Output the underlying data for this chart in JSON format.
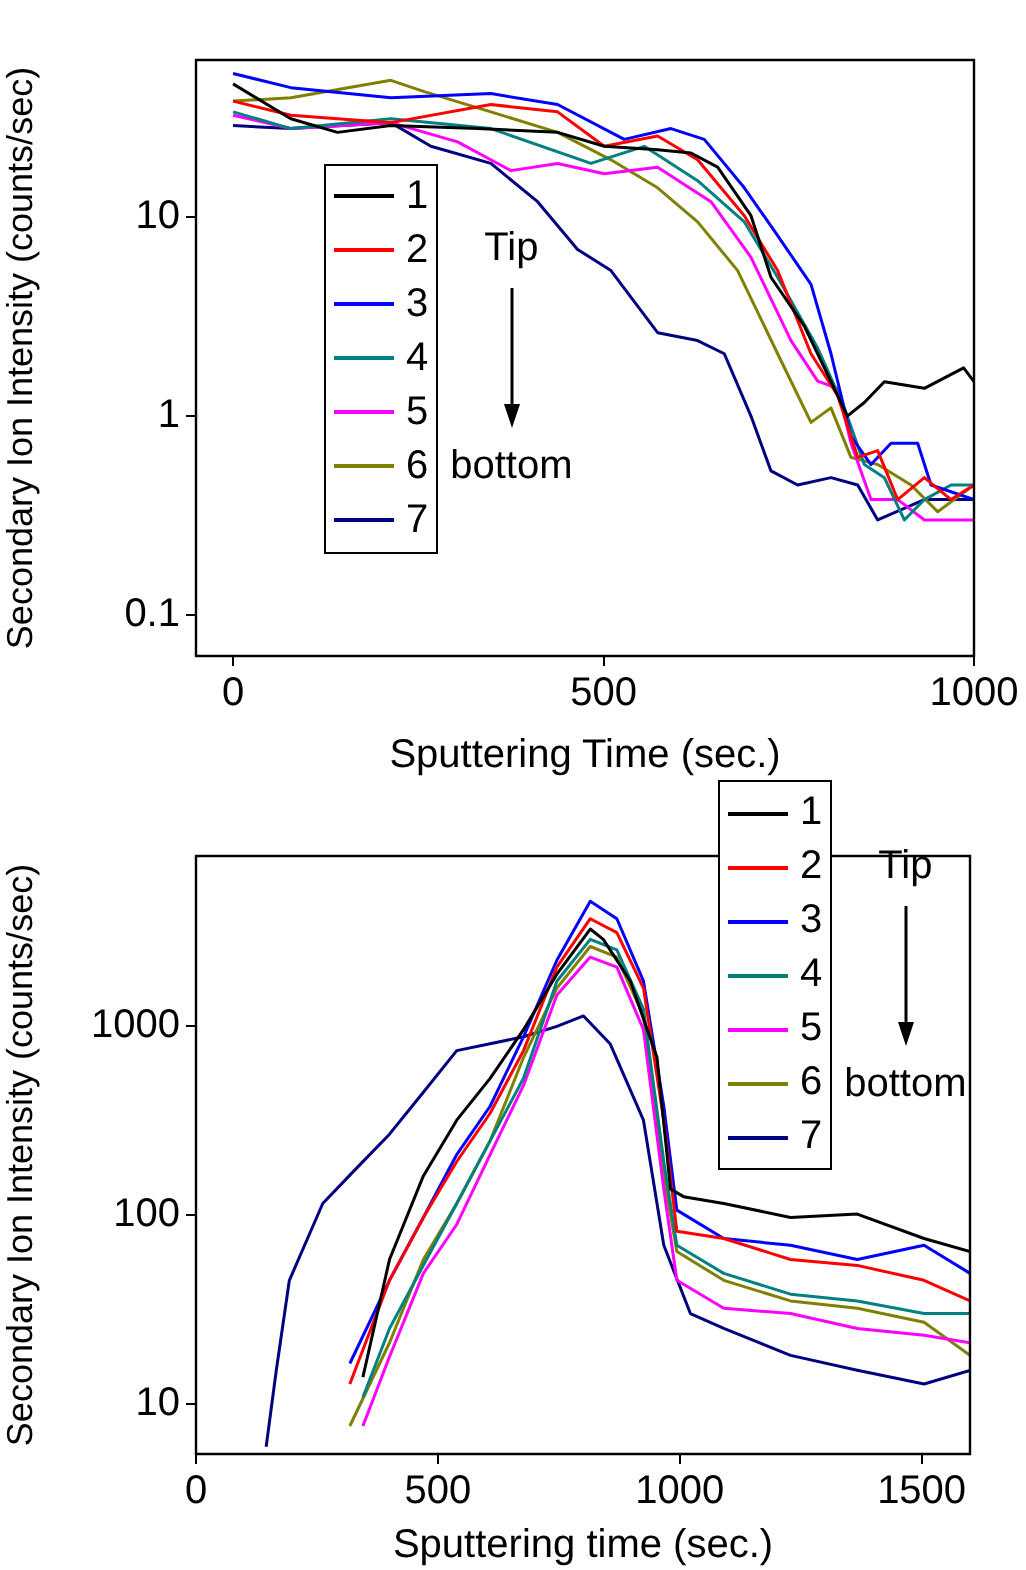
{
  "chart_data": [
    {
      "type": "line",
      "xlabel": "Sputtering Time (sec.)",
      "ylabel": "Secondary Ion Intensity (counts/sec)",
      "log": "y",
      "xlim": [
        -50,
        1000
      ],
      "xticks": [
        0,
        500,
        1000
      ],
      "ylim": [
        0.062,
        62
      ],
      "yticks": [
        0.1,
        1,
        10
      ],
      "grid": false,
      "legend": "left",
      "marker": "none",
      "line_style": "solid",
      "annotations": [
        "Tip",
        "bottom"
      ],
      "series": [
        {
          "name": "1",
          "color": "#000000",
          "x": [
            0,
            78,
            141,
            213,
            330,
            438,
            501,
            573,
            618,
            654,
            699,
            726,
            771,
            807,
            829,
            852,
            879,
            933,
            986,
            1000
          ],
          "values": [
            47,
            31.4,
            26.8,
            29,
            28,
            26.8,
            22.8,
            21.9,
            21.1,
            17.9,
            10.2,
            5,
            2.84,
            1.49,
            1.0,
            1.17,
            1.49,
            1.38,
            1.75,
            1.49
          ]
        },
        {
          "name": "2",
          "color": "#ff0000",
          "x": [
            0,
            78,
            213,
            348,
            438,
            501,
            573,
            627,
            690,
            735,
            780,
            816,
            843,
            870,
            897,
            933,
            969,
            1000
          ],
          "values": [
            38.5,
            32.7,
            30,
            37,
            34,
            22.8,
            25.7,
            19.5,
            10.2,
            5.4,
            2.06,
            1.27,
            0.62,
            0.67,
            0.38,
            0.49,
            0.38,
            0.45
          ]
        },
        {
          "name": "3",
          "color": "#0000ff",
          "x": [
            0,
            78,
            213,
            348,
            438,
            528,
            591,
            636,
            690,
            735,
            780,
            807,
            834,
            861,
            888,
            924,
            942,
            1000
          ],
          "values": [
            53,
            45,
            40,
            42,
            37,
            24.7,
            28,
            24.7,
            14.1,
            8.1,
            4.6,
            2.06,
            0.79,
            0.57,
            0.73,
            0.73,
            0.45,
            0.38
          ]
        },
        {
          "name": "4",
          "color": "#008080",
          "x": [
            0,
            78,
            213,
            348,
            483,
            555,
            627,
            690,
            735,
            789,
            825,
            852,
            879,
            906,
            933,
            969,
            1000
          ],
          "values": [
            34,
            28,
            31.4,
            28,
            18.7,
            22.8,
            15.3,
            9.5,
            5,
            2.2,
            1.1,
            0.57,
            0.49,
            0.3,
            0.38,
            0.45,
            0.45
          ]
        },
        {
          "name": "5",
          "color": "#ff00ff",
          "x": [
            0,
            78,
            213,
            303,
            375,
            438,
            501,
            573,
            645,
            699,
            753,
            789,
            816,
            834,
            861,
            897,
            933,
            1000
          ],
          "values": [
            32.7,
            28,
            30,
            24,
            17.2,
            18.7,
            16.6,
            17.9,
            12,
            6.3,
            2.4,
            1.5,
            1.38,
            0.73,
            0.38,
            0.38,
            0.3,
            0.3
          ]
        },
        {
          "name": "6",
          "color": "#808000",
          "x": [
            0,
            78,
            213,
            258,
            348,
            438,
            510,
            573,
            627,
            681,
            735,
            780,
            807,
            834,
            870,
            915,
            951,
            1000
          ],
          "values": [
            38.5,
            40,
            49,
            43,
            34,
            26.8,
            19.5,
            14.1,
            9.5,
            5.4,
            2.06,
            0.93,
            1.1,
            0.62,
            0.57,
            0.45,
            0.33,
            0.45
          ]
        },
        {
          "name": "7",
          "color": "#000080",
          "x": [
            0,
            78,
            213,
            267,
            348,
            411,
            465,
            510,
            573,
            627,
            663,
            699,
            726,
            762,
            807,
            843,
            870,
            933,
            1000
          ],
          "values": [
            29,
            28,
            30,
            22.8,
            18.7,
            12,
            6.9,
            5.4,
            2.63,
            2.4,
            2.06,
            1.0,
            0.53,
            0.45,
            0.49,
            0.45,
            0.3,
            0.38,
            0.38
          ]
        }
      ]
    },
    {
      "type": "line",
      "xlabel": "Sputtering time (sec.)",
      "ylabel": "Secondary Ion Intensity (counts/sec)",
      "log": "y",
      "xlim": [
        0,
        1600
      ],
      "xticks": [
        0,
        500,
        1000,
        1500
      ],
      "ylim": [
        5.4,
        8000
      ],
      "yticks": [
        10,
        100,
        1000
      ],
      "grid": false,
      "legend": "top right",
      "marker": "none",
      "line_style": "solid",
      "annotations": [
        "Tip",
        "bottom"
      ],
      "series": [
        {
          "name": "1",
          "color": "#000000",
          "x": [
            345,
            400,
            470,
            539,
            608,
            677,
            746,
            815,
            842,
            898,
            953,
            981,
            1008,
            1091,
            1229,
            1367,
            1505,
            1600
          ],
          "values": [
            13.8,
            58,
            161,
            318,
            530,
            960,
            1890,
            3280,
            2890,
            1735,
            683,
            137,
            125,
            115,
            97,
            101,
            75,
            64
          ]
        },
        {
          "name": "2",
          "color": "#ff0000",
          "x": [
            318,
            400,
            470,
            539,
            608,
            677,
            746,
            815,
            870,
            925,
            967,
            994,
            1091,
            1229,
            1367,
            1505,
            1600
          ],
          "values": [
            12.7,
            45,
            97,
            192,
            346,
            743,
            2060,
            3720,
            3140,
            1595,
            318,
            82,
            75,
            58,
            54,
            45,
            35
          ]
        },
        {
          "name": "3",
          "color": "#0000ff",
          "x": [
            318,
            400,
            470,
            539,
            608,
            677,
            746,
            815,
            870,
            925,
            967,
            994,
            1091,
            1229,
            1367,
            1505,
            1600
          ],
          "values": [
            16.3,
            45,
            97,
            209,
            377,
            880,
            2240,
            4600,
            3720,
            1735,
            377,
            106,
            75,
            69,
            58,
            69,
            49
          ]
        },
        {
          "name": "4",
          "color": "#008080",
          "x": [
            345,
            400,
            470,
            539,
            608,
            677,
            746,
            815,
            870,
            925,
            967,
            994,
            1091,
            1229,
            1367,
            1505,
            1600
          ],
          "values": [
            10.8,
            25,
            54,
            115,
            247,
            530,
            1735,
            2890,
            2540,
            1235,
            192,
            69,
            49,
            38,
            35,
            30,
            30
          ]
        },
        {
          "name": "5",
          "color": "#ff00ff",
          "x": [
            345,
            400,
            470,
            539,
            608,
            677,
            746,
            815,
            870,
            925,
            967,
            994,
            1091,
            1229,
            1367,
            1505,
            1600
          ],
          "values": [
            7.6,
            17.7,
            49,
            89,
            209,
            486,
            1465,
            2330,
            2060,
            960,
            137,
            45,
            32,
            30,
            25,
            23,
            21
          ]
        },
        {
          "name": "6",
          "color": "#808000",
          "x": [
            318,
            400,
            470,
            539,
            608,
            677,
            746,
            815,
            870,
            925,
            967,
            994,
            1091,
            1229,
            1367,
            1505,
            1600
          ],
          "values": [
            7.6,
            21,
            58,
            115,
            247,
            683,
            1595,
            2650,
            2330,
            1135,
            161,
            64,
            45,
            35,
            32,
            27,
            18
          ]
        },
        {
          "name": "7",
          "color": "#000080",
          "x": [
            145,
            166,
            193,
            262,
            331,
            400,
            470,
            539,
            677,
            746,
            801,
            856,
            925,
            967,
            1022,
            1091,
            1229,
            1367,
            1505,
            1600
          ],
          "values": [
            5.9,
            15,
            45,
            115,
            176,
            268,
            447,
            743,
            880,
            1000,
            1135,
            809,
            318,
            69,
            30,
            25,
            18,
            15,
            12.7,
            15
          ]
        }
      ]
    }
  ]
}
